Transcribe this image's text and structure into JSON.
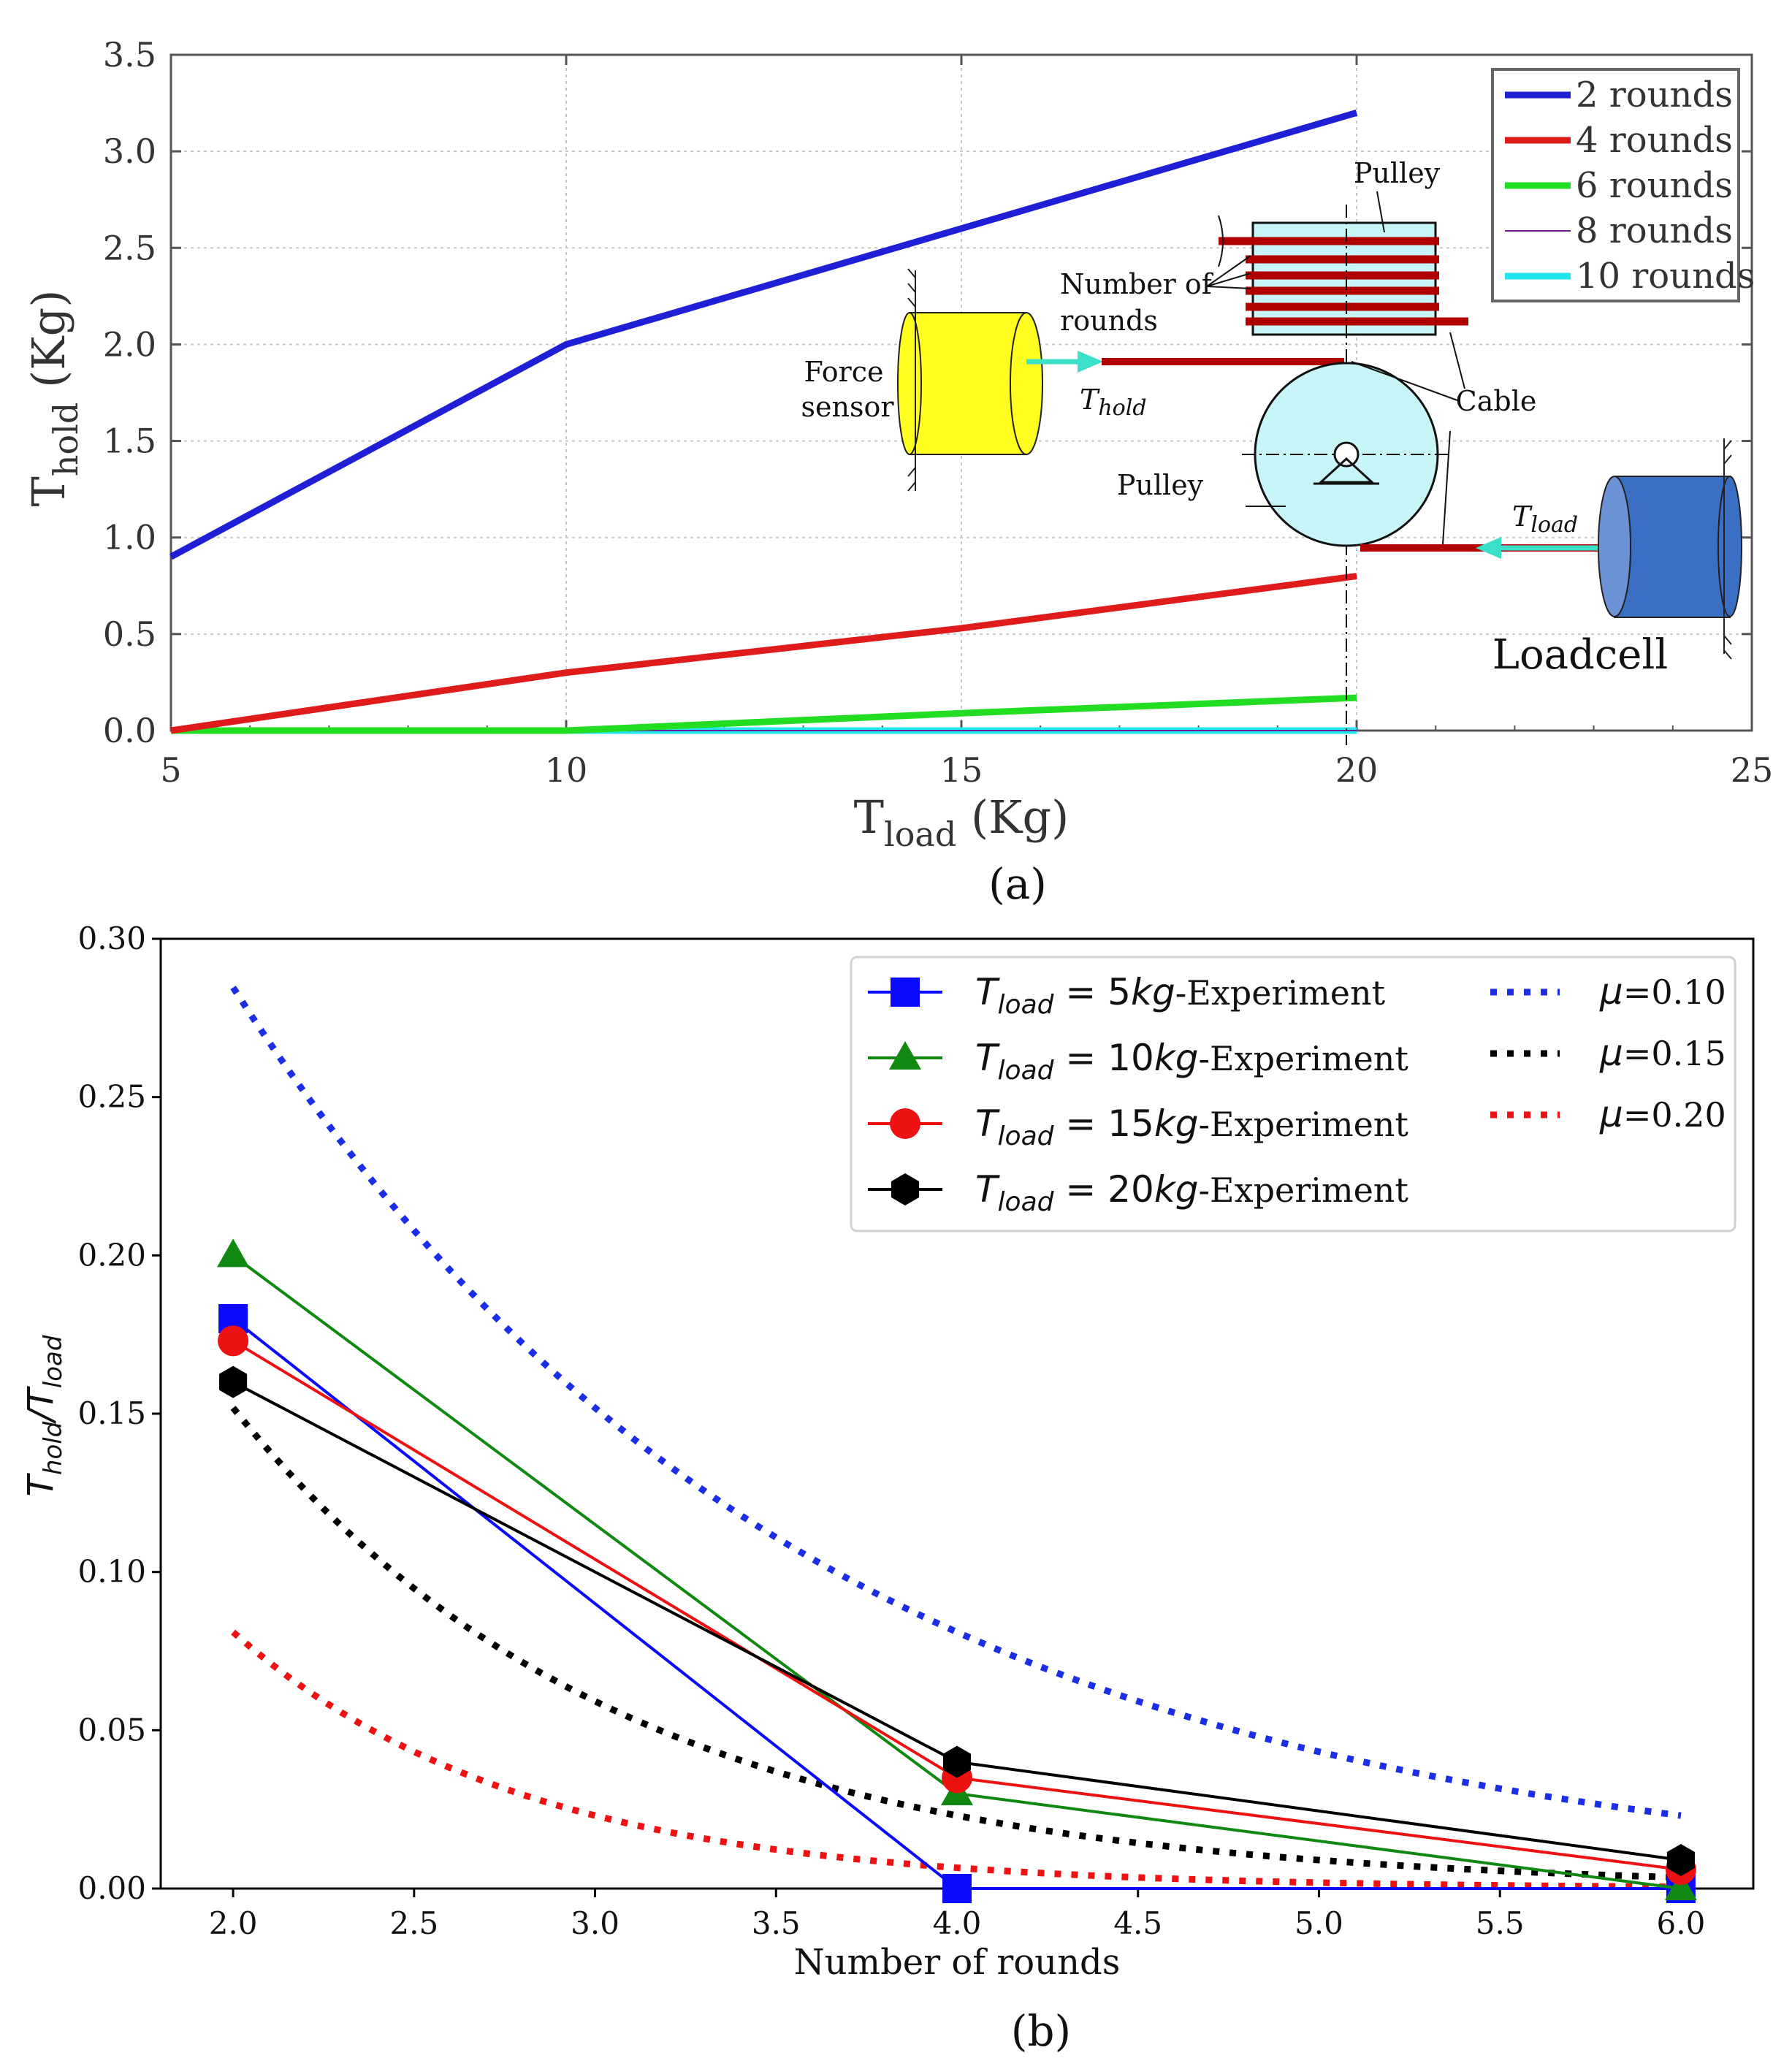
{
  "figure": {
    "panel_a_caption": "(a)",
    "panel_b_caption": "(b)"
  },
  "chart_data": [
    {
      "type": "line",
      "panel": "a",
      "title": "",
      "xlabel": "T",
      "xlabel_sub": "load",
      "xlabel_unit": " (Kg)",
      "ylabel": "T",
      "ylabel_sub": "hold",
      "ylabel_unit": " (Kg)",
      "xlim": [
        5,
        25
      ],
      "ylim": [
        0,
        3.5
      ],
      "x_ticks": [
        5,
        10,
        15,
        20,
        25
      ],
      "x_tick_labels": [
        "5",
        "10",
        "15",
        "20",
        "25"
      ],
      "y_ticks": [
        0,
        0.5,
        1.0,
        1.5,
        2.0,
        2.5,
        3.0,
        3.5
      ],
      "y_tick_labels": [
        "0.0",
        "0.5",
        "1.0",
        "1.5",
        "2.0",
        "2.5",
        "3.0",
        "3.5"
      ],
      "grid": true,
      "legend_position": "top-right",
      "x": [
        5,
        10,
        15,
        20
      ],
      "series": [
        {
          "name": "2 rounds",
          "values": [
            0.9,
            2.0,
            2.6,
            3.2
          ],
          "color": "#1f1fd6",
          "width": 9
        },
        {
          "name": "4 rounds",
          "values": [
            0.0,
            0.3,
            0.53,
            0.8
          ],
          "color": "#e01b1b",
          "width": 9
        },
        {
          "name": "6 rounds",
          "values": [
            0.0,
            0.0,
            0.09,
            0.17
          ],
          "color": "#22dd22",
          "width": 9
        },
        {
          "name": "8 rounds",
          "values": [
            0.0,
            0.0,
            0.0,
            0.0
          ],
          "color": "#6a1b9a",
          "width": 2
        },
        {
          "name": "10 rounds",
          "values": [
            0.0,
            0.0,
            0.0,
            0.0
          ],
          "color": "#22e5ee",
          "width": 9
        }
      ],
      "inset": {
        "labels": {
          "pulley_top": "Pulley",
          "number_of": "Number of",
          "rounds": "rounds",
          "force": "Force",
          "sensor": "sensor",
          "t_hold": "T",
          "t_hold_sub": "hold",
          "cable": "Cable",
          "pulley_mid": "Pulley",
          "t_load": "T",
          "t_load_sub": "load",
          "loadcell": "Loadcell"
        },
        "colors": {
          "force_sensor": "#ffff22",
          "pulley": "#c8f5f8",
          "cable": "#b00000",
          "arrow": "#3be0c8",
          "loadcell": "#3b6fc4"
        }
      }
    },
    {
      "type": "line",
      "panel": "b",
      "title": "",
      "xlabel": "Number of rounds",
      "ylabel": "T",
      "ylabel_sub1": "hold",
      "ylabel_sep": "/T",
      "ylabel_sub2": "load",
      "xlim": [
        1.8,
        6.2
      ],
      "ylim": [
        0,
        0.3
      ],
      "x_ticks": [
        2.0,
        2.5,
        3.0,
        3.5,
        4.0,
        4.5,
        5.0,
        5.5,
        6.0
      ],
      "x_tick_labels": [
        "2.0",
        "2.5",
        "3.0",
        "3.5",
        "4.0",
        "4.5",
        "5.0",
        "5.5",
        "6.0"
      ],
      "y_ticks": [
        0,
        0.05,
        0.1,
        0.15,
        0.2,
        0.25,
        0.3
      ],
      "y_tick_labels": [
        "0.00",
        "0.05",
        "0.10",
        "0.15",
        "0.20",
        "0.25",
        "0.30"
      ],
      "grid": false,
      "legend_position": "top-right",
      "x": [
        2,
        4,
        6
      ],
      "series": [
        {
          "name_prefix": "T",
          "name_sub": "load",
          "name_eq": " = 5",
          "name_unit": "kg",
          "name_suffix": "-Experiment",
          "values": [
            0.18,
            0.0,
            0.0
          ],
          "color": "#0a0aff",
          "marker": "square"
        },
        {
          "name_prefix": "T",
          "name_sub": "load",
          "name_eq": " = 10",
          "name_unit": "kg",
          "name_suffix": "-Experiment",
          "values": [
            0.2,
            0.03,
            0.0
          ],
          "color": "#118811",
          "marker": "triangle"
        },
        {
          "name_prefix": "T",
          "name_sub": "load",
          "name_eq": " = 15",
          "name_unit": "kg",
          "name_suffix": "-Experiment",
          "values": [
            0.173,
            0.035,
            0.006
          ],
          "color": "#ee1111",
          "marker": "circle"
        },
        {
          "name_prefix": "T",
          "name_sub": "load",
          "name_eq": " = 20",
          "name_unit": "kg",
          "name_suffix": "-Experiment",
          "values": [
            0.16,
            0.04,
            0.009
          ],
          "color": "#000000",
          "marker": "hexagon"
        }
      ],
      "theory": [
        {
          "name_prefix": "μ",
          "name_value": "=0.10",
          "mu": 0.1,
          "color": "#1a2ee6"
        },
        {
          "name_prefix": "μ",
          "name_value": "=0.15",
          "mu": 0.15,
          "color": "#000000"
        },
        {
          "name_prefix": "μ",
          "name_value": "=0.20",
          "mu": 0.2,
          "color": "#ee1111"
        }
      ]
    }
  ]
}
